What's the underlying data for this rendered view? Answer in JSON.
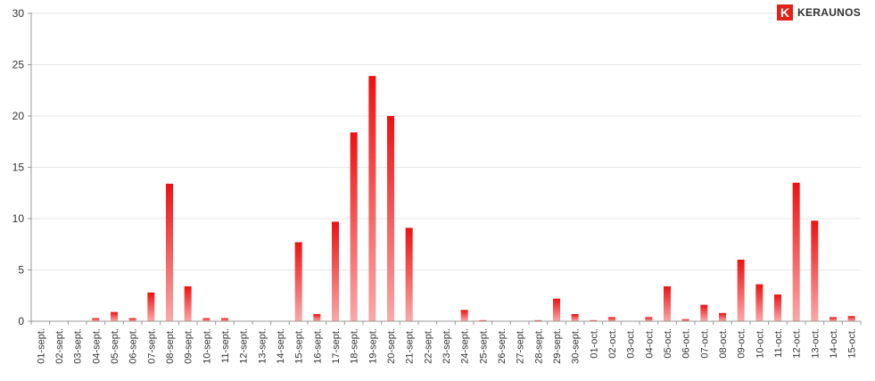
{
  "logo": {
    "mark": "K",
    "text": "KERAUNOS",
    "color": "#e2231a"
  },
  "chart_data": {
    "type": "bar",
    "title": "",
    "xlabel": "",
    "ylabel": "",
    "ylim": [
      0,
      30
    ],
    "yticks": [
      0,
      5,
      10,
      15,
      20,
      25,
      30
    ],
    "grid": true,
    "legend": "none",
    "bar_color_top": "#ee1111",
    "bar_color_bottom": "#f9a9a9",
    "categories": [
      "01-sept.",
      "02-sept.",
      "03-sept.",
      "04-sept.",
      "05-sept.",
      "06-sept.",
      "07-sept.",
      "08-sept.",
      "09-sept.",
      "10-sept.",
      "11-sept.",
      "12-sept.",
      "13-sept.",
      "14-sept.",
      "15-sept.",
      "16-sept.",
      "17-sept.",
      "18-sept.",
      "19-sept.",
      "20-sept.",
      "21-sept.",
      "22-sept.",
      "23-sept.",
      "24-sept.",
      "25-sept.",
      "26-sept.",
      "27-sept.",
      "28-sept.",
      "29-sept.",
      "30-sept.",
      "01-oct.",
      "02-oct.",
      "03-oct.",
      "04-oct.",
      "05-oct.",
      "06-oct.",
      "07-oct.",
      "08-oct.",
      "09-oct.",
      "10-oct.",
      "11-oct.",
      "12-oct.",
      "13-oct.",
      "14-oct.",
      "15-oct."
    ],
    "values": [
      0,
      0,
      0,
      0.3,
      0.9,
      0.3,
      2.8,
      13.4,
      3.4,
      0.3,
      0.3,
      0,
      0,
      0,
      7.7,
      0.7,
      9.7,
      18.4,
      23.9,
      20.0,
      9.1,
      0,
      0,
      1.1,
      0.1,
      0,
      0,
      0.1,
      2.2,
      0.7,
      0.1,
      0.4,
      0,
      0.4,
      3.4,
      0.2,
      1.6,
      0.8,
      6.0,
      3.6,
      2.6,
      13.5,
      9.8,
      0.4,
      0.5
    ]
  }
}
